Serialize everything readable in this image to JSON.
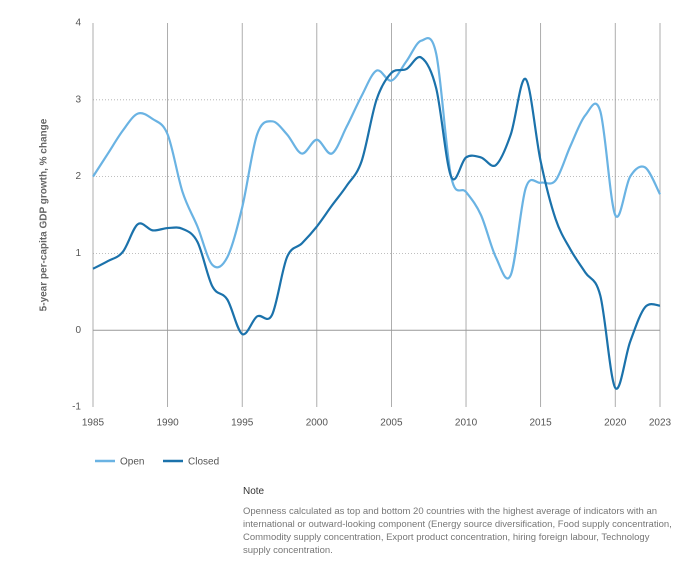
{
  "chart_data": {
    "type": "line",
    "y_label": "5-year per-capita GDP growth, % change",
    "x": [
      1985,
      1986,
      1987,
      1988,
      1989,
      1990,
      1991,
      1992,
      1993,
      1994,
      1995,
      1996,
      1997,
      1998,
      1999,
      2000,
      2001,
      2002,
      2003,
      2004,
      2005,
      2006,
      2007,
      2008,
      2009,
      2010,
      2011,
      2012,
      2013,
      2014,
      2015,
      2016,
      2017,
      2018,
      2019,
      2020,
      2021,
      2022,
      2023
    ],
    "series": [
      {
        "name": "Open",
        "color": "#6ab3e3",
        "values": [
          2.0,
          2.3,
          2.6,
          2.82,
          2.75,
          2.55,
          1.8,
          1.35,
          0.85,
          0.95,
          1.6,
          2.55,
          2.72,
          2.55,
          2.3,
          2.48,
          2.3,
          2.65,
          3.05,
          3.38,
          3.25,
          3.5,
          3.77,
          3.6,
          2.0,
          1.8,
          1.5,
          0.95,
          0.72,
          1.85,
          1.92,
          1.95,
          2.4,
          2.8,
          2.85,
          1.5,
          2.0,
          2.12,
          1.77
        ]
      },
      {
        "name": "Closed",
        "color": "#1b72ab",
        "values": [
          0.8,
          0.9,
          1.02,
          1.38,
          1.3,
          1.33,
          1.32,
          1.15,
          0.57,
          0.4,
          -0.05,
          0.18,
          0.2,
          0.95,
          1.13,
          1.35,
          1.62,
          1.88,
          2.2,
          3.0,
          3.35,
          3.4,
          3.55,
          3.15,
          2.0,
          2.25,
          2.25,
          2.15,
          2.55,
          3.27,
          2.2,
          1.45,
          1.05,
          0.75,
          0.45,
          -0.75,
          -0.15,
          0.3,
          0.32
        ]
      }
    ],
    "xlim": [
      1985,
      2023
    ],
    "xticks": [
      1985,
      1990,
      1995,
      2000,
      2005,
      2010,
      2015,
      2020,
      2023
    ],
    "ylim": [
      -1,
      4
    ],
    "yticks": [
      -1,
      0,
      1,
      2,
      3,
      4
    ],
    "note_title": "Note",
    "note": "Openness calculated as top and bottom 20 countries with the highest average of indicators with an international or outward-looking component (Energy source diversification, Food supply concentration, Commodity supply concentration, Export product concentration, hiring foreign labour, Technology supply concentration."
  }
}
